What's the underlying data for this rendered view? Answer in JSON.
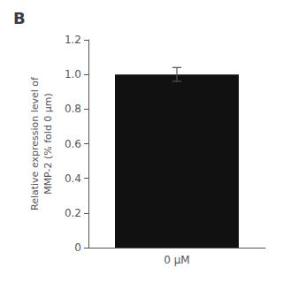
{
  "chart_data": {
    "type": "bar",
    "title": "B",
    "ylabel": "Relative expression level of\nMMP-2 (% fold 0 μm)",
    "categories": [
      "0 μM"
    ],
    "values": [
      1.0
    ],
    "errors": [
      0.04
    ],
    "color": "#111111",
    "ylim": [
      0,
      1.2
    ],
    "yticks": [
      0,
      0.2,
      0.4,
      0.6,
      0.8,
      {
        "value": 1.0,
        "label": "1.0"
      },
      1.2
    ],
    "grid": false
  }
}
